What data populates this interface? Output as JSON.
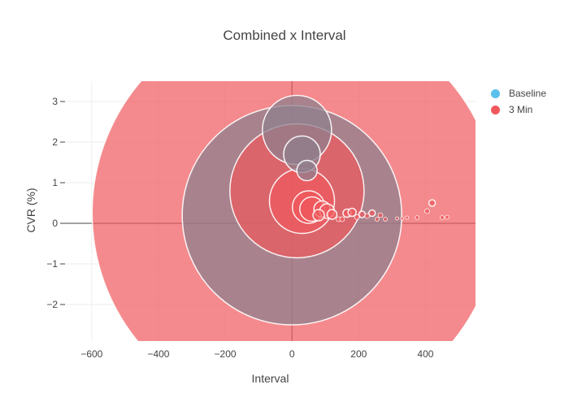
{
  "chart_data": {
    "type": "scatter",
    "title": "Combined x Interval",
    "xlabel": "Interval",
    "ylabel": "CVR (%)",
    "xlim": [
      -680,
      550
    ],
    "ylim": [
      -2.9,
      3.5
    ],
    "x_ticks": [
      -600,
      -400,
      -200,
      0,
      200,
      400
    ],
    "y_ticks": [
      -2,
      -1,
      0,
      1,
      2,
      3
    ],
    "x_tick_labels": [
      "−600",
      "−400",
      "−200",
      "0",
      "200",
      "400"
    ],
    "y_tick_labels": [
      "−2",
      "−1",
      "0",
      "1",
      "2",
      "3"
    ],
    "grid": true,
    "legend_position": "top-right",
    "series": [
      {
        "name": "Baseline",
        "color": "#5bc0eb",
        "x": [
          15,
          0,
          30,
          45
        ],
        "y": [
          2.3,
          0.2,
          1.7,
          1.3
        ],
        "size_units": [
          85,
          270,
          45,
          25
        ]
      },
      {
        "name": "3 Min",
        "color": "#f0595c",
        "x": [
          10,
          15,
          30,
          50,
          60,
          80,
          90,
          105,
          120,
          140,
          150,
          165,
          180,
          195,
          210,
          225,
          240,
          255,
          265,
          280,
          315,
          330,
          345,
          375,
          405,
          420,
          450,
          465
        ],
        "y": [
          0.25,
          0.8,
          0.55,
          0.4,
          0.35,
          0.2,
          0.35,
          0.3,
          0.22,
          0.1,
          0.1,
          0.25,
          0.27,
          0.15,
          0.22,
          0.18,
          0.25,
          0.1,
          0.2,
          0.1,
          0.12,
          0.12,
          0.14,
          0.14,
          0.3,
          0.5,
          0.14,
          0.15
        ],
        "size_units": [
          500,
          165,
          80,
          40,
          30,
          14,
          20,
          18,
          12,
          6,
          6,
          10,
          10,
          6,
          8,
          6,
          8,
          5,
          6,
          5,
          4,
          4,
          4,
          5,
          6,
          8,
          5,
          5
        ]
      }
    ]
  }
}
